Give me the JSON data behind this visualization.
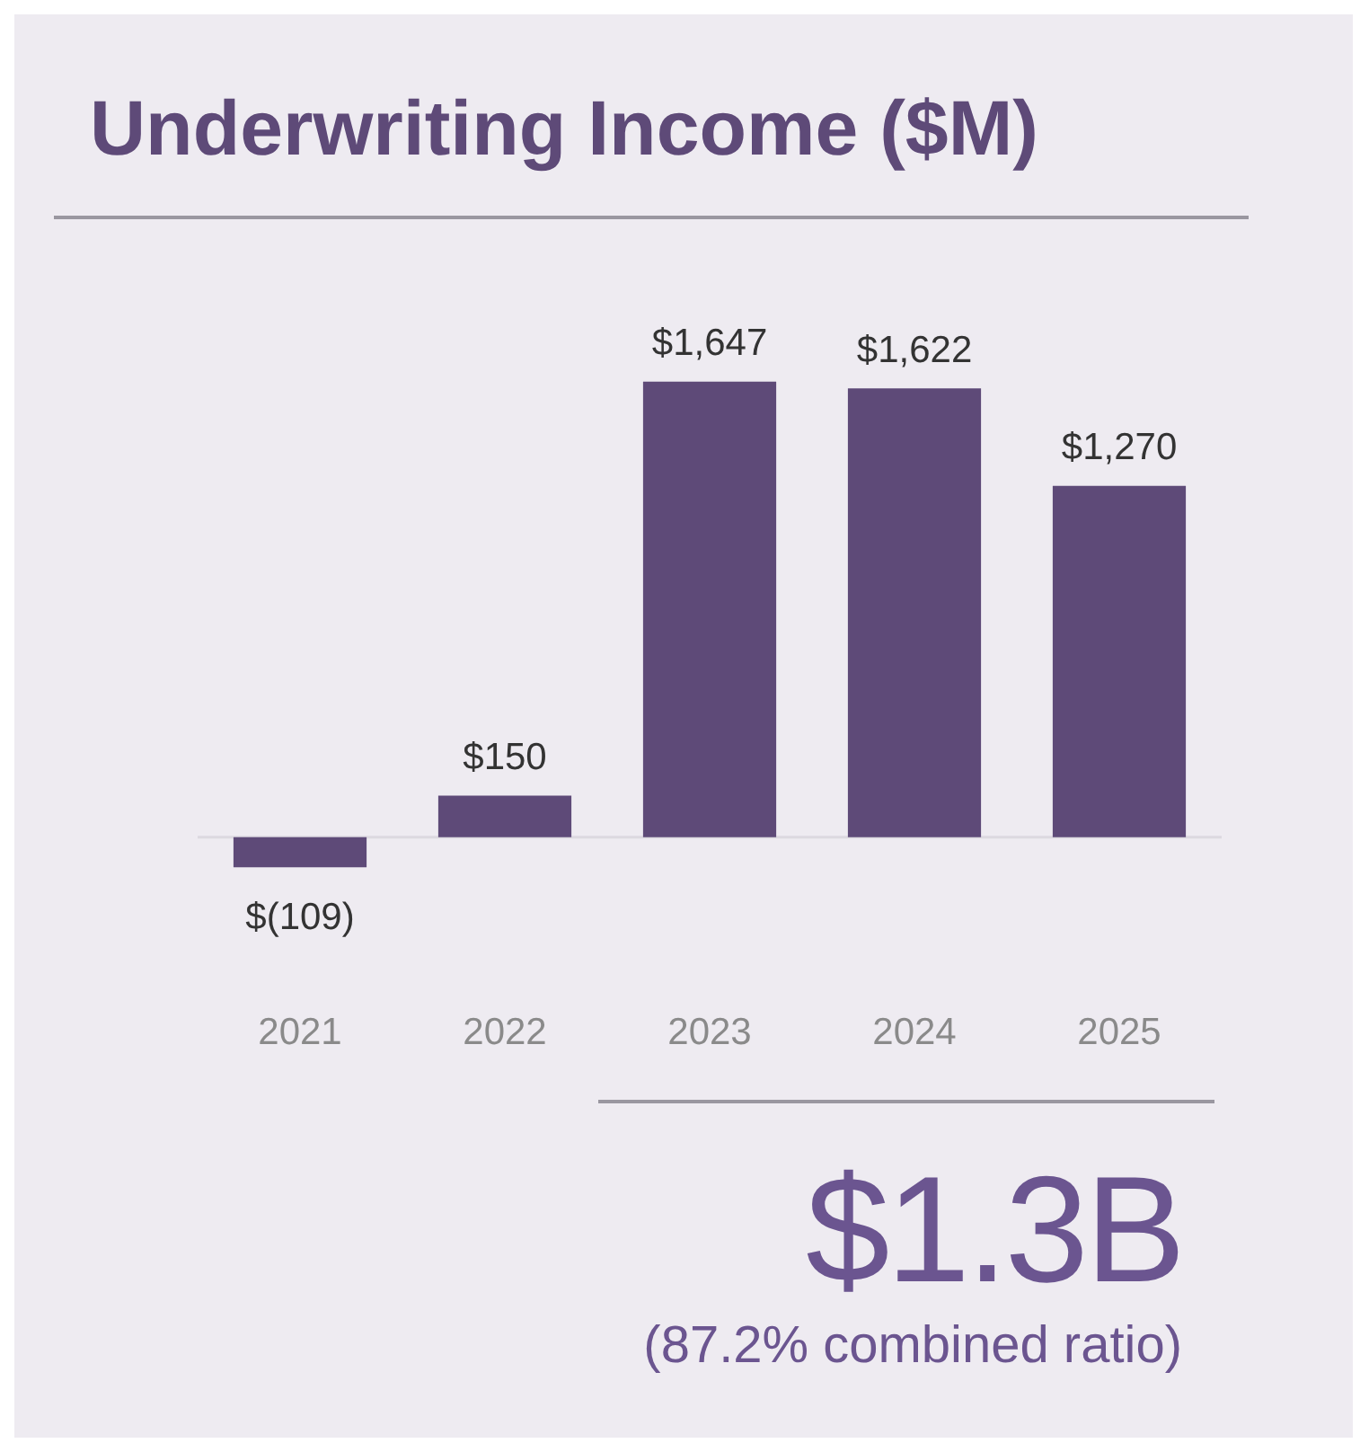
{
  "chart_data": {
    "type": "bar",
    "title": "Underwriting Income ($M)",
    "categories": [
      "2021",
      "2022",
      "2023",
      "2024",
      "2025"
    ],
    "values": [
      -109,
      150,
      1647,
      1622,
      1270
    ],
    "value_labels": [
      "$(109)",
      "$150",
      "$1,647",
      "$1,622",
      "$1,270"
    ],
    "color": "#5e4a78",
    "annotations": [
      "$1.3B",
      "(87.2% combined ratio)"
    ],
    "grid": false,
    "legend": false
  }
}
